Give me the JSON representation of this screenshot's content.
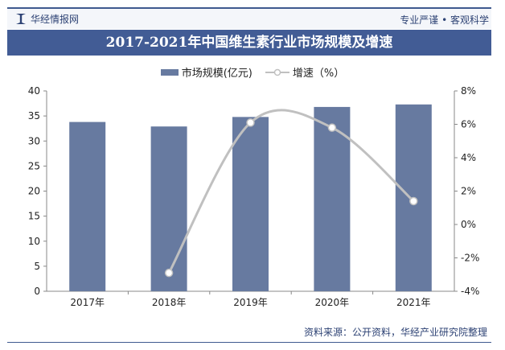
{
  "header": {
    "logo_text": "华经情报网",
    "slogan": "专业严谨 • 客观科学"
  },
  "footer": {
    "source": "资料来源：公开资料，华经产业研究院整理"
  },
  "chart_data": {
    "type": "bar",
    "title": "2017-2021年中国维生素行业市场规模及增速",
    "categories": [
      "2017年",
      "2018年",
      "2019年",
      "2020年",
      "2021年"
    ],
    "series": [
      {
        "name": "市场规模(亿元)",
        "type": "bar",
        "axis": "left",
        "values": [
          33.8,
          32.9,
          34.8,
          36.8,
          37.3
        ],
        "color": "#677aa0"
      },
      {
        "name": "增速（%）",
        "type": "line",
        "axis": "right",
        "smooth": true,
        "values": [
          null,
          -2.9,
          6.1,
          5.8,
          1.4
        ],
        "color": "#c0c0c0"
      }
    ],
    "y_left": {
      "min": 0,
      "max": 40,
      "ticks": [
        "0",
        "5",
        "10",
        "15",
        "20",
        "25",
        "30",
        "35",
        "40"
      ]
    },
    "y_right": {
      "min": -4,
      "max": 8,
      "ticks": [
        "-4%",
        "-2%",
        "0%",
        "2%",
        "4%",
        "6%",
        "8%"
      ]
    },
    "legend": "top",
    "grid": false
  }
}
